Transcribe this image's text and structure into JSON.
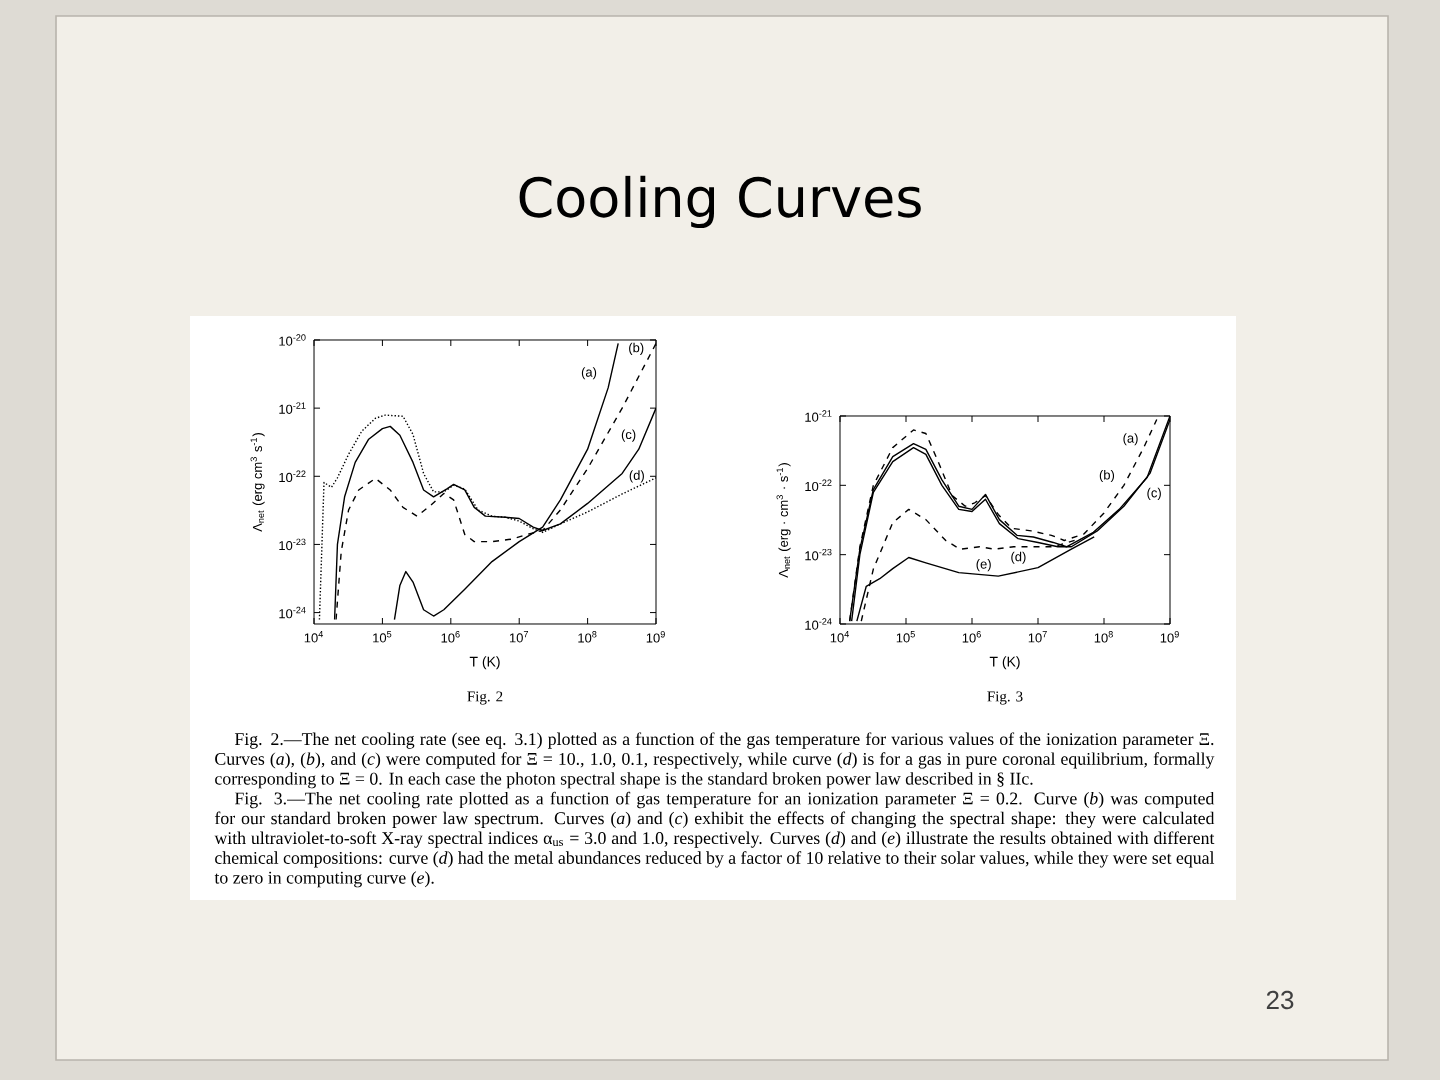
{
  "chart_data": [
    {
      "type": "line",
      "log": "xy",
      "xlabel": "T (K)",
      "ylabel": "Λ$_{net}$ (erg cm$^{3}$ s$^{-1}$)",
      "xlim": [
        10000,
        1000000000
      ],
      "ylim": [
        6.8e-25,
        1e-20
      ],
      "xticks": [
        {
          "value": 10000,
          "label": "10$^{4}$"
        },
        {
          "value": 100000,
          "label": "10$^{5}$"
        },
        {
          "value": 1000000,
          "label": "10$^{6}$"
        },
        {
          "value": 10000000,
          "label": "10$^{7}$"
        },
        {
          "value": 100000000,
          "label": "10$^{8}$"
        },
        {
          "value": 1000000000,
          "label": "10$^{9}$"
        }
      ],
      "yticks": [
        {
          "value": 1e-24,
          "label": "10$^{-24}$"
        },
        {
          "value": 1e-23,
          "label": "10$^{-23}$"
        },
        {
          "value": 1e-22,
          "label": "10$^{-22}$"
        },
        {
          "value": 1e-21,
          "label": "10$^{-21}$"
        },
        {
          "value": 1e-20,
          "label": "10$^{-20}$"
        }
      ],
      "series": [
        {
          "color": "#000000",
          "line_style": "solid",
          "x": [
            150000,
            180000,
            220000,
            280000,
            400000,
            560000,
            790000,
            1600000,
            4000000,
            10000000,
            22000000,
            40000000,
            100000000,
            200000000,
            280000000
          ],
          "values": [
            7.9e-25,
            2.5e-24,
            4e-24,
            2.8e-24,
            1.1e-24,
            8.9e-25,
            1.1e-24,
            2.2e-24,
            5.6e-24,
            1.1e-23,
            1.8e-23,
            4.5e-23,
            2.5e-22,
            2e-21,
            8.9e-21
          ]
        },
        {
          "color": "#000000",
          "line_style": "dashed",
          "x": [
            21000,
            25000,
            32000,
            45000,
            79000,
            130000,
            200000,
            320000,
            500000,
            790000,
            1100000,
            1600000,
            2200000,
            4000000,
            7900000,
            13000000,
            22000000,
            40000000,
            100000000,
            320000000,
            1000000000
          ],
          "values": [
            7.9e-25,
            7.9e-24,
            3.2e-23,
            6.3e-23,
            9.3e-23,
            6.3e-23,
            3.5e-23,
            2.6e-23,
            3.7e-23,
            5.6e-23,
            4.5e-23,
            1.4e-23,
            1.1e-23,
            1.1e-23,
            1.2e-23,
            1.4e-23,
            1.6e-23,
            3.2e-23,
            1.3e-22,
            1e-21,
            8.9e-21
          ]
        },
        {
          "color": "#000000",
          "line_style": "solid",
          "x": [
            20000,
            22000,
            28000,
            40000,
            63000,
            100000,
            130000,
            180000,
            280000,
            400000,
            560000,
            890000,
            1100000,
            1600000,
            2200000,
            3200000,
            6300000,
            10000000,
            16000000,
            22000000,
            40000000,
            100000000,
            320000000,
            560000000,
            1000000000
          ],
          "values": [
            7.9e-25,
            1e-23,
            5e-23,
            1.6e-22,
            3.5e-22,
            5e-22,
            5.4e-22,
            4e-22,
            1.6e-22,
            6.3e-23,
            5e-23,
            6.6e-23,
            7.6e-23,
            6.3e-23,
            3.5e-23,
            2.6e-23,
            2.5e-23,
            2.4e-23,
            1.8e-23,
            1.6e-23,
            2e-23,
            4e-23,
            1.1e-22,
            2.5e-22,
            1e-21
          ]
        },
        {
          "color": "#000000",
          "line_style": "dotted",
          "x": [
            12000,
            14000,
            18000,
            22000,
            32000,
            50000,
            79000,
            110000,
            200000,
            280000,
            400000,
            560000,
            790000,
            1100000,
            1600000,
            2500000,
            4000000,
            6300000,
            10000000,
            16000000,
            22000000,
            40000000,
            100000000,
            320000000,
            1000000000
          ],
          "values": [
            7.9e-25,
            8.1e-23,
            6.9e-23,
            9.5e-23,
            2.1e-22,
            4.6e-22,
            7.1e-22,
            7.9e-22,
            7.6e-22,
            4.1e-22,
            1.1e-22,
            5.9e-23,
            5.9e-23,
            7.4e-23,
            6.5e-23,
            3.2e-23,
            2.6e-23,
            2.5e-23,
            2.2e-23,
            1.7e-23,
            1.5e-23,
            2e-23,
            3e-23,
            5.5e-23,
            9.5e-23
          ]
        }
      ],
      "annotations": [
        "Fig. 2",
        {
          "text": "(a)",
          "x": 200000000,
          "y": 2e-21
        },
        {
          "text": "(b)",
          "x": 1000000000,
          "y": 8.9e-21
        },
        {
          "text": "(c)",
          "x": 560000000,
          "y": 2.5e-22
        },
        {
          "text": "(d)",
          "x": 1000000000,
          "y": 9.5e-23
        }
      ]
    },
    {
      "type": "line",
      "log": "xy",
      "xlabel": "T (K)",
      "ylabel": "Λ$_{net}$ (erg · cm$^{3}$ · s$^{-1}$)",
      "xlim": [
        10000,
        1000000000
      ],
      "ylim": [
        1e-24,
        1e-21
      ],
      "xticks": [
        {
          "value": 10000,
          "label": "10$^{4}$"
        },
        {
          "value": 100000,
          "label": "10$^{5}$"
        },
        {
          "value": 1000000,
          "label": "10$^{6}$"
        },
        {
          "value": 10000000,
          "label": "10$^{7}$"
        },
        {
          "value": 100000000,
          "label": "10$^{8}$"
        },
        {
          "value": 1000000000,
          "label": "10$^{9}$"
        }
      ],
      "yticks": [
        {
          "value": 1e-24,
          "label": "10$^{-24}$"
        },
        {
          "value": 1e-23,
          "label": "10$^{-23}$"
        },
        {
          "value": 1e-22,
          "label": "10$^{-22}$"
        },
        {
          "value": 1e-21,
          "label": "10$^{-21}$"
        }
      ],
      "series": [
        {
          "color": "#000000",
          "line_style": "dashed",
          "x": [
            14000,
            20000,
            32000,
            63000,
            130000,
            200000,
            320000,
            500000,
            790000,
            1100000,
            1600000,
            2500000,
            4000000,
            7900000,
            16000000,
            25000000,
            50000000,
            100000000,
            200000000,
            400000000,
            630000000
          ],
          "values": [
            1.1e-24,
            1.3e-23,
            1e-22,
            3.5e-22,
            6.3e-22,
            5.6e-22,
            2e-22,
            7.1e-23,
            5e-23,
            5.6e-23,
            7.1e-23,
            3.8e-23,
            2.4e-23,
            2.2e-23,
            1.9e-23,
            1.6e-23,
            2e-23,
            4e-23,
            1e-22,
            3.5e-22,
            8.9e-22
          ]
        },
        {
          "color": "#000000",
          "line_style": "solid",
          "x": [
            14000,
            20000,
            32000,
            63000,
            130000,
            200000,
            350000,
            630000,
            1000000,
            1600000,
            2600000,
            4800000,
            8500000,
            17000000,
            27000000,
            69000000,
            170000000,
            450000000,
            1000000000
          ],
          "values": [
            1.1e-24,
            1.2e-23,
            8.7e-23,
            2.6e-22,
            4e-22,
            3.3e-22,
            1.2e-22,
            5e-23,
            4.5e-23,
            7.4e-23,
            3.2e-23,
            1.9e-23,
            1.8e-23,
            1.5e-23,
            1.3e-23,
            2.1e-23,
            4.5e-23,
            1.3e-22,
            1e-21
          ]
        },
        {
          "color": "#000000",
          "line_style": "solid",
          "x": [
            15000,
            20000,
            32000,
            63000,
            130000,
            200000,
            350000,
            630000,
            1000000,
            1600000,
            2600000,
            5000000,
            10000000,
            20000000,
            32000000,
            79000000,
            200000000,
            500000000,
            1000000000
          ],
          "values": [
            1.1e-24,
            1e-23,
            7.9e-23,
            2.2e-22,
            3.5e-22,
            2.8e-22,
            1e-22,
            4.5e-23,
            4.2e-23,
            6.3e-23,
            2.8e-23,
            1.7e-23,
            1.5e-23,
            1.3e-23,
            1.3e-23,
            2.2e-23,
            5e-23,
            1.5e-22,
            8.9e-22
          ]
        },
        {
          "color": "#000000",
          "line_style": "dashed",
          "x": [
            21000,
            32000,
            63000,
            110000,
            200000,
            400000,
            660000,
            1300000,
            2200000,
            4300000,
            17000000,
            44000000
          ],
          "values": [
            1.1e-24,
            6.2e-24,
            2.9e-23,
            4.5e-23,
            3.2e-23,
            1.6e-23,
            1.2e-23,
            1.3e-23,
            1.2e-23,
            1.3e-23,
            1.3e-23,
            1.7e-23
          ]
        },
        {
          "color": "#000000",
          "line_style": "solid",
          "x": [
            18000,
            25000,
            40000,
            63000,
            110000,
            200000,
            630000,
            2500000,
            10000000,
            32000000,
            71000000
          ],
          "values": [
            1.1e-24,
            3.5e-24,
            4.5e-24,
            6.3e-24,
            9.1e-24,
            7.6e-24,
            5.5e-24,
            4.9e-24,
            6.5e-24,
            1.2e-23,
            1.8e-23
          ]
        }
      ],
      "annotations": [
        "Fig. 3",
        {
          "text": "(a)",
          "x": 400000000,
          "y": 3.5e-22
        },
        {
          "text": "(b)",
          "x": 450000000,
          "y": 1.3e-22
        },
        {
          "text": "(c)",
          "x": 500000000,
          "y": 1.5e-22
        },
        {
          "text": "(d)",
          "x": 4300000,
          "y": 1.3e-23
        },
        {
          "text": "(e)",
          "x": 2500000,
          "y": 4.9e-24
        }
      ]
    },
    {
      "type": "other",
      "title": "Cooling Curves",
      "annotations": [
        "Fig. 2.—The net cooling rate (see eq. 3.1) plotted as a function of the gas temperature for various values of the ionization parameter Ξ. Curves (*a*), (*b*), and (*c*) were computed for Ξ = 10., 1.0, 0.1, respectively, while curve (*d*) is for a gas in pure coronal equilibrium, formally corresponding to Ξ = 0. In each case the photon spectral shape is the standard broken power law described in § IIc.",
        "Fig. 3.—The net cooling rate plotted as a function of gas temperature for an ionization parameter Ξ = 0.2. Curve (*b*) was computed for our standard broken power law spectrum. Curves (*a*) and (*c*) exhibit the effects of changing the spectral shape: they were calculated with ultraviolet-to-soft X-ray spectral indices α$_{us}$ = 3.0 and 1.0, respectively. Curves (*d*) and (*e*) illustrate the results obtained with different chemical compositions: curve (*d*) had the metal abundances reduced by a factor of 10 relative to their solar values, while they were set equal to zero in computing curve (*e*).",
        "23"
      ]
    }
  ]
}
